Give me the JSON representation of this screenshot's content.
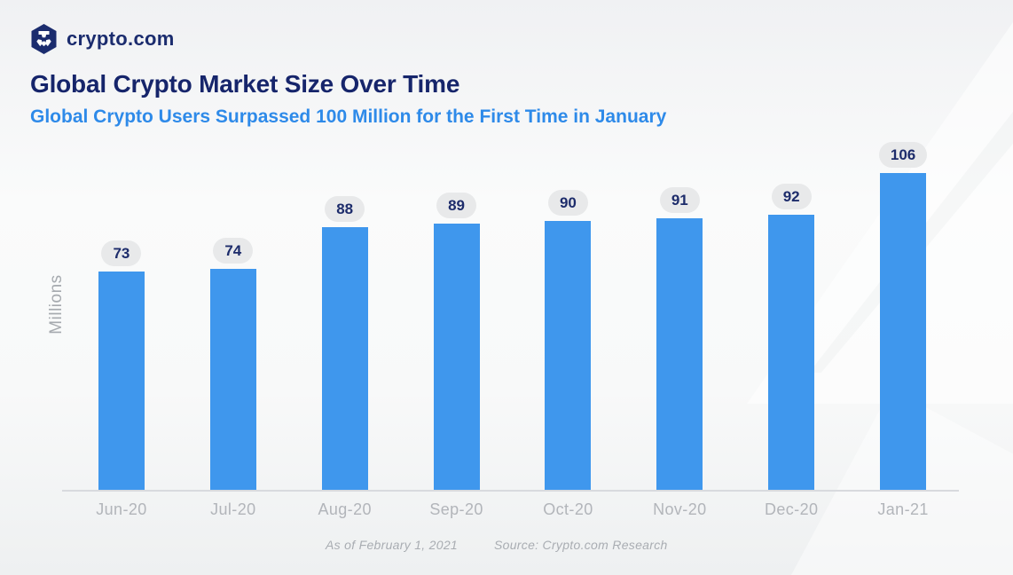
{
  "brand": {
    "logo_text": "crypto.com",
    "logo_icon": "crypto-com-hexagon-logo"
  },
  "header": {
    "title": "Global Crypto Market Size Over Time",
    "subtitle": "Global Crypto Users Surpassed 100 Million for the First Time in January"
  },
  "chart_data": {
    "type": "bar",
    "categories": [
      "Jun-20",
      "Jul-20",
      "Aug-20",
      "Sep-20",
      "Oct-20",
      "Nov-20",
      "Dec-20",
      "Jan-21"
    ],
    "values": [
      73,
      74,
      88,
      89,
      90,
      91,
      92,
      106
    ],
    "title": "Global Crypto Market Size Over Time",
    "xlabel": "",
    "ylabel": "Millions",
    "ylim": [
      0,
      110
    ],
    "grid": "off",
    "legend": "none",
    "value_label_style": "pill badge above each bar",
    "bar_color": "#3F97ED"
  },
  "footer": {
    "as_of": "As of February 1, 2021",
    "source": "Source: Crypto.com Research"
  },
  "colors": {
    "title": "#16256B",
    "subtitle": "#2E8AE9",
    "bar": "#3F97ED",
    "pill_bg": "#E8E9EA",
    "pill_text": "#1D2C6B",
    "axis_line": "#D8DADE",
    "tick_label": "#B2B5BA",
    "ylabel": "#A6AAAF",
    "footer_text": "#A9ADB2",
    "navy": "#1B2C6E"
  }
}
